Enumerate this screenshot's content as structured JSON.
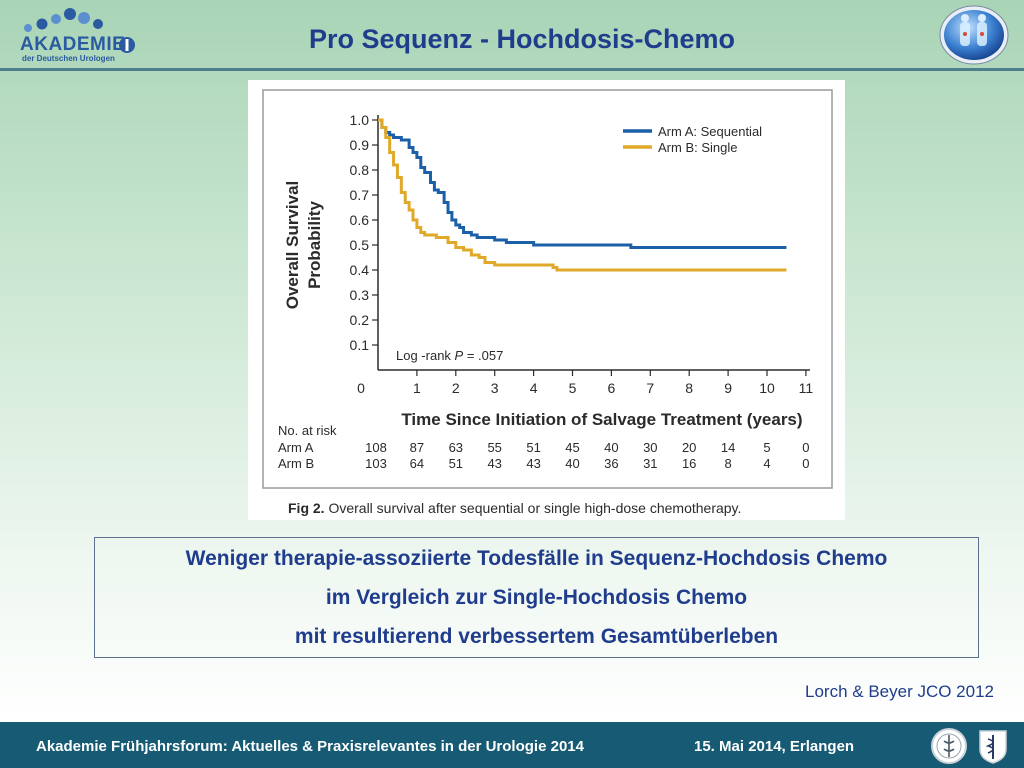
{
  "header": {
    "title": "Pro Sequenz - Hochdosis-Chemo",
    "logo_left": {
      "wordmark": "AKADEMIE",
      "subtitle": "der Deutschen Urologen",
      "colors": {
        "primary": "#2a5aa0",
        "light": "#5b8fd0"
      }
    },
    "logo_right": {
      "icon": "anatomy-globe-icon"
    }
  },
  "chart_data": {
    "type": "line",
    "step": true,
    "xlabel": "Time Since Initiation of Salvage Treatment (years)",
    "ylabel": "Overall Survival Probability",
    "ylabel_lines": [
      "Overall Survival",
      "Probability"
    ],
    "xlim": [
      0,
      11
    ],
    "ylim": [
      0,
      1.0
    ],
    "xticks": [
      0,
      1,
      2,
      3,
      4,
      5,
      6,
      7,
      8,
      9,
      10,
      11
    ],
    "yticks": [
      0.1,
      0.2,
      0.3,
      0.4,
      0.5,
      0.6,
      0.7,
      0.8,
      0.9,
      1.0
    ],
    "x_origin_label": "0",
    "annotation": {
      "prefix": "Log -rank ",
      "italic": "P",
      "suffix": " = .057"
    },
    "legend": "top-right",
    "series": [
      {
        "name": "Arm A: Sequential",
        "color": "#1a5fa8",
        "x": [
          0,
          0.1,
          0.2,
          0.3,
          0.4,
          0.6,
          0.8,
          0.9,
          1.0,
          1.1,
          1.2,
          1.35,
          1.45,
          1.55,
          1.7,
          1.8,
          1.9,
          2.0,
          2.1,
          2.2,
          2.4,
          2.55,
          2.75,
          3.0,
          3.3,
          3.5,
          3.75,
          4.0,
          4.3,
          5.0,
          6.0,
          6.5,
          7.0,
          9.0,
          10.5
        ],
        "y": [
          1.0,
          0.97,
          0.95,
          0.94,
          0.93,
          0.92,
          0.89,
          0.87,
          0.85,
          0.81,
          0.79,
          0.75,
          0.72,
          0.71,
          0.67,
          0.63,
          0.6,
          0.58,
          0.57,
          0.55,
          0.54,
          0.53,
          0.53,
          0.52,
          0.51,
          0.51,
          0.51,
          0.5,
          0.5,
          0.5,
          0.5,
          0.49,
          0.49,
          0.49,
          0.49
        ]
      },
      {
        "name": "Arm B: Single",
        "color": "#e0a92a",
        "x": [
          0,
          0.1,
          0.2,
          0.3,
          0.4,
          0.5,
          0.6,
          0.7,
          0.8,
          0.9,
          1.0,
          1.1,
          1.2,
          1.5,
          1.8,
          2.0,
          2.2,
          2.4,
          2.6,
          2.75,
          3.0,
          3.5,
          4.0,
          4.3,
          4.5,
          4.6,
          10.5
        ],
        "y": [
          1.0,
          0.97,
          0.93,
          0.87,
          0.82,
          0.77,
          0.71,
          0.67,
          0.64,
          0.6,
          0.57,
          0.55,
          0.54,
          0.53,
          0.51,
          0.49,
          0.48,
          0.46,
          0.45,
          0.43,
          0.42,
          0.42,
          0.42,
          0.42,
          0.41,
          0.4,
          0.4
        ]
      }
    ],
    "risk_table": {
      "header": "No. at risk",
      "times": [
        0,
        1,
        2,
        3,
        4,
        5,
        6,
        7,
        8,
        9,
        10,
        11
      ],
      "rows": [
        {
          "label": "Arm A",
          "values": [
            "108",
            "87",
            "63",
            "55",
            "51",
            "45",
            "40",
            "30",
            "20",
            "14",
            "5",
            "0"
          ]
        },
        {
          "label": "Arm B",
          "values": [
            "103",
            "64",
            "51",
            "43",
            "43",
            "40",
            "36",
            "31",
            "16",
            "8",
            "4",
            "0"
          ]
        }
      ]
    },
    "caption": {
      "label": "Fig 2.",
      "text": " Overall survival after sequential or single high-dose chemotherapy."
    }
  },
  "summary": {
    "lines": [
      "Weniger therapie-assoziierte Todesfälle in Sequenz-Hochdosis Chemo",
      "im Vergleich zur Single-Hochdosis Chemo",
      "mit resultierend verbessertem Gesamtüberleben"
    ]
  },
  "citation": "Lorch & Beyer JCO 2012",
  "footer": {
    "event": "Akademie Frühjahrsforum: Aktuelles & Praxisrelevantes in der Urologie 2014",
    "date_location": "15. Mai 2014, Erlangen",
    "background": "#165b73",
    "logos": [
      "seal-icon",
      "aesculapius-icon"
    ]
  }
}
